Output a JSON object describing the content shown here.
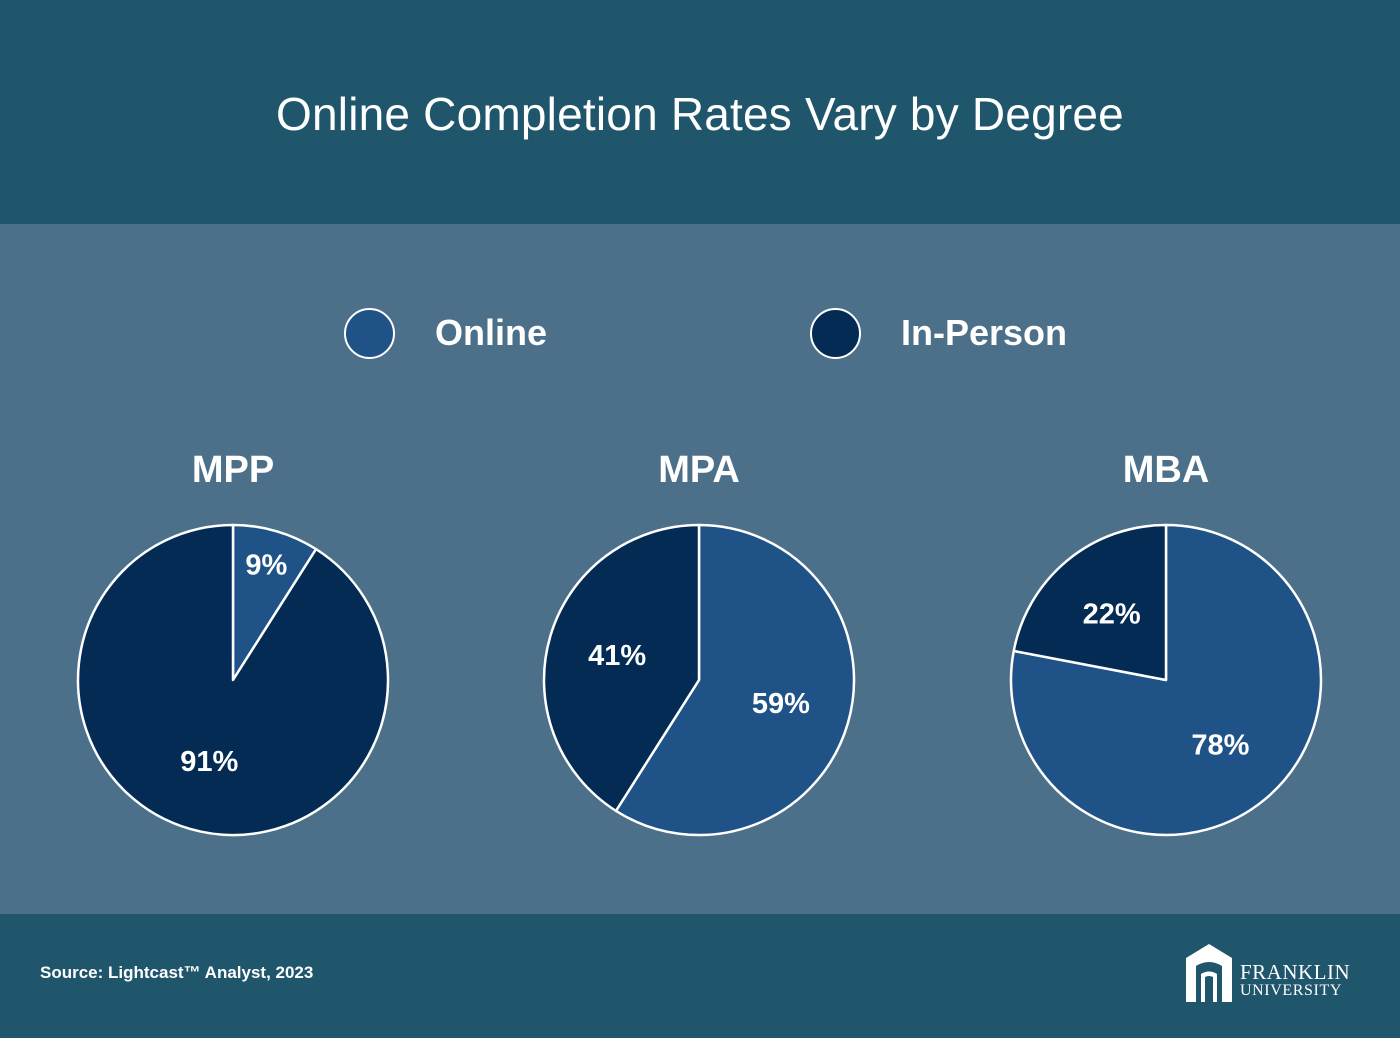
{
  "title": "Online Completion Rates Vary by Degree",
  "legend": [
    {
      "label": "Online",
      "color": "#1f5387"
    },
    {
      "label": "In-Person",
      "color": "#032b53"
    }
  ],
  "chart_data": [
    {
      "type": "pie",
      "title": "MPP",
      "categories": [
        "Online",
        "In-Person"
      ],
      "values": [
        9,
        91
      ],
      "labels": [
        "9%",
        "91%"
      ],
      "colors": [
        "#1f5387",
        "#032b53"
      ]
    },
    {
      "type": "pie",
      "title": "MPA",
      "categories": [
        "Online",
        "In-Person"
      ],
      "values": [
        59,
        41
      ],
      "labels": [
        "59%",
        "41%"
      ],
      "colors": [
        "#1f5387",
        "#032b53"
      ]
    },
    {
      "type": "pie",
      "title": "MBA",
      "categories": [
        "Online",
        "In-Person"
      ],
      "values": [
        78,
        22
      ],
      "labels": [
        "78%",
        "22%"
      ],
      "colors": [
        "#1f5387",
        "#032b53"
      ]
    }
  ],
  "footer": {
    "source": "Source: Lightcast™ Analyst, 2023",
    "logo_line1": "FRANKLIN",
    "logo_line2": "UNIVERSITY"
  }
}
